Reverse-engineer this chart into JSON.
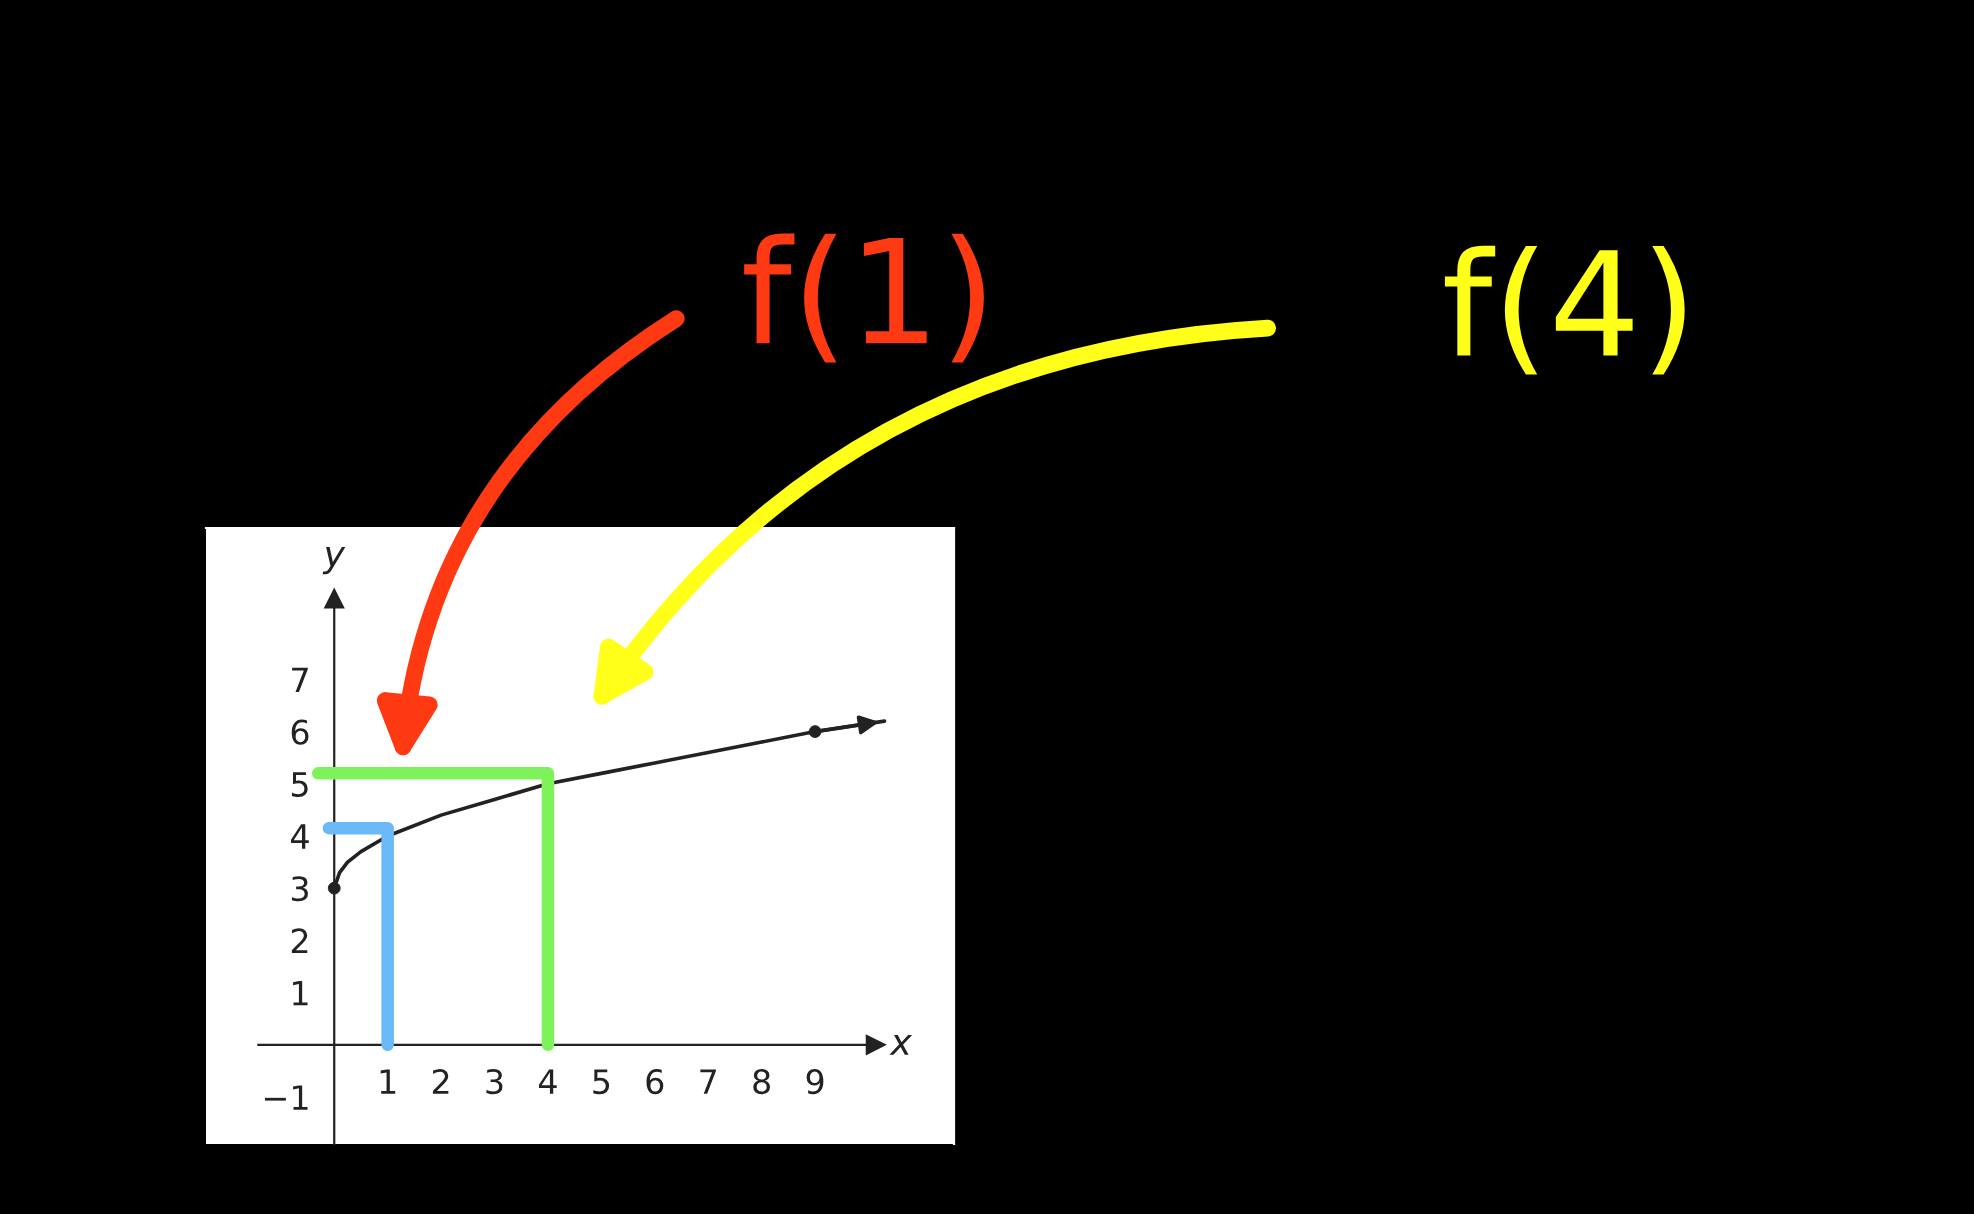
{
  "chart_data": {
    "type": "line",
    "xlabel": "x",
    "ylabel": "y",
    "xlim": [
      -2.4,
      11.6
    ],
    "ylim": [
      -1.9,
      9.9
    ],
    "xticks": [
      1,
      2,
      3,
      4,
      5,
      6,
      7,
      8,
      9
    ],
    "yticks": [
      -1,
      1,
      2,
      3,
      4,
      5,
      6,
      7
    ],
    "grid": false,
    "series": [
      {
        "color": "#222222",
        "x": [
          0,
          0.1,
          0.25,
          0.5,
          1,
          2,
          3,
          4,
          5,
          6,
          7,
          8,
          9,
          10.3
        ],
        "values": [
          3,
          3.3,
          3.5,
          3.7,
          4,
          4.4,
          4.7,
          5,
          5.2,
          5.4,
          5.6,
          5.8,
          6,
          6.2
        ]
      },
      {
        "type": "scatter",
        "color": "#222222",
        "marker": "circle",
        "x": [
          0,
          9
        ],
        "values": [
          3,
          6
        ]
      },
      {
        "color": "#6ab8f7",
        "x": [
          -0.1,
          1,
          1
        ],
        "values": [
          4.15,
          4.15,
          0
        ]
      },
      {
        "color": "#7ef25a",
        "x": [
          -0.3,
          4,
          4
        ],
        "values": [
          5.2,
          5.2,
          0
        ]
      }
    ],
    "annotations": [
      "f(1)",
      "f(4)"
    ]
  }
}
